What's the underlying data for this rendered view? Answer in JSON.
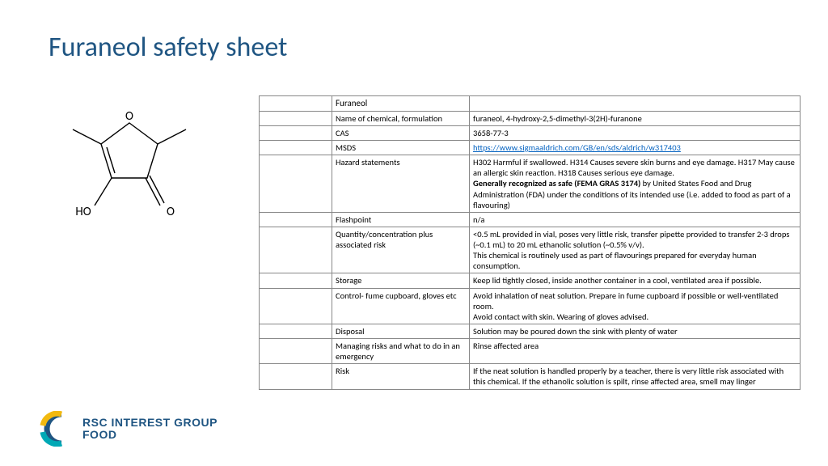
{
  "title": "Furaneol safety sheet",
  "structure": {
    "labels": {
      "O_top": "O",
      "HO": "HO",
      "O_bot": "O"
    },
    "stroke": "#000000",
    "stroke_width": 1.4
  },
  "table": {
    "header": "Furaneol",
    "rows": [
      {
        "label": "Name of chemical, formulation",
        "value": "furaneol, 4-hydroxy-2,5-dimethyl-3(2H)-furanone",
        "link": false
      },
      {
        "label": "CAS",
        "value": "3658-77-3",
        "link": false
      },
      {
        "label": "MSDS",
        "value": "https://www.sigmaaldrich.com/GB/en/sds/aldrich/w317403",
        "link": true
      },
      {
        "label": "Hazard statements",
        "value_pre": "H302 Harmful if swallowed. H314 Causes severe skin burns and eye damage. H317 May cause an allergic skin reaction. H318 Causes serious eye damage.",
        "value_bold": "Generally recognized as safe (FEMA GRAS 3174)",
        "value_post": " by United States Food and Drug Administration (FDA) under the conditions of its intended use (i.e. added to food as part of a flavouring)"
      },
      {
        "label": "Flashpoint",
        "value": "n/a"
      },
      {
        "label": "Quantity/concentration plus associated risk",
        "value": "<0.5 mL provided in vial, poses very little risk, transfer pipette provided to transfer 2-3 drops (~0.1 mL) to 20 mL ethanolic solution (~0.5% v/v).\nThis chemical is routinely used as part of flavourings prepared for everyday human consumption."
      },
      {
        "label": "Storage",
        "value": "Keep lid tightly closed, inside another container in a cool, ventilated area if possible."
      },
      {
        "label": "Control- fume cupboard, gloves etc",
        "value": "Avoid inhalation of neat solution. Prepare in fume cupboard if possible or well-ventilated room.\nAvoid contact with skin. Wearing of gloves advised."
      },
      {
        "label": "Disposal",
        "value": "Solution may be poured down the sink with plenty of water\n "
      },
      {
        "label": "Managing risks and what to do in an emergency",
        "value": "Rinse affected area\n "
      },
      {
        "label": "Risk",
        "value": "If the neat solution is handled properly by a teacher, there is very little risk associated with this chemical. If the ethanolic solution is spilt, rinse affected area, smell may linger"
      }
    ]
  },
  "logo": {
    "line1": "RSC INTEREST GROUP",
    "line2": "FOOD",
    "colors": {
      "dark": "#1f5582",
      "yellow": "#f2b90f",
      "teal": "#00a8b5"
    }
  }
}
